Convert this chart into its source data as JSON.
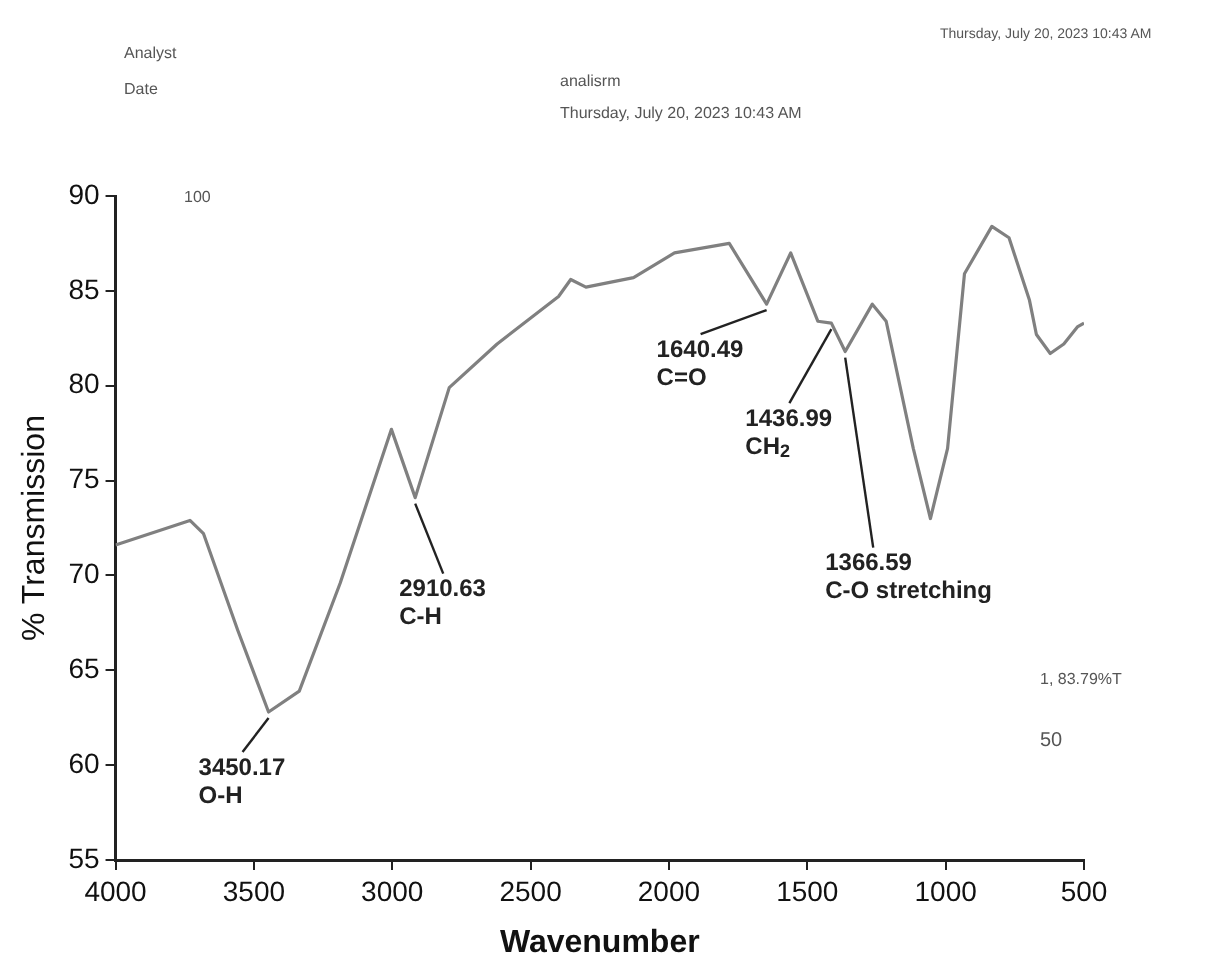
{
  "chart_data": {
    "type": "line",
    "xlabel": "Wavenumber",
    "ylabel": "% Transmission",
    "xlim": [
      4000,
      500
    ],
    "xticks": [
      4000,
      3500,
      3000,
      2500,
      2000,
      1500,
      1000,
      500
    ],
    "ylim": [
      55,
      90
    ],
    "yticks": [
      55,
      60,
      65,
      70,
      75,
      80,
      85,
      90
    ],
    "grid": false,
    "legend": false,
    "marker": "none",
    "line_style": "solid",
    "series": [
      {
        "color": "#808080",
        "x": [
          4000,
          3731,
          3682,
          3558,
          3447,
          3336,
          3188,
          3003,
          2917,
          2794,
          2621,
          2399,
          2355,
          2300,
          2128,
          1980,
          1782,
          1647,
          1560,
          1462,
          1413,
          1363,
          1265,
          1215,
          1117,
          1055,
          993,
          932,
          833,
          771,
          697,
          672,
          622,
          573,
          524,
          500
        ],
        "values": [
          71.6,
          72.9,
          72.2,
          67.1,
          62.8,
          63.9,
          69.6,
          77.7,
          74.1,
          79.9,
          82.2,
          84.7,
          85.6,
          85.2,
          85.7,
          87.0,
          87.5,
          84.3,
          87.0,
          83.4,
          83.3,
          81.8,
          84.3,
          83.4,
          76.7,
          73.0,
          76.7,
          85.9,
          88.4,
          87.8,
          84.5,
          82.7,
          81.7,
          82.2,
          83.1,
          83.3
        ]
      }
    ],
    "annotations": [
      "Analyst",
      "Date",
      "analisrm",
      "Thursday, July 20, 2023 10:43 AM",
      "Thursday, July 20, 2023 10:43 AM",
      "100",
      "1, 83.79%T",
      "50",
      {
        "text": "3450.17\nO-H",
        "x": 3447,
        "y": 62.8
      },
      {
        "text": "2910.63\nC-H",
        "x": 2917,
        "y": 74.1
      },
      {
        "text": "1640.49\nC=O",
        "x": 1647,
        "y": 84.3
      },
      {
        "text": "1436.99\nCH$_{2}$",
        "x": 1413,
        "y": 83.3
      },
      {
        "text": "1366.59\nC-O stretching",
        "x": 1363,
        "y": 81.8
      }
    ]
  }
}
